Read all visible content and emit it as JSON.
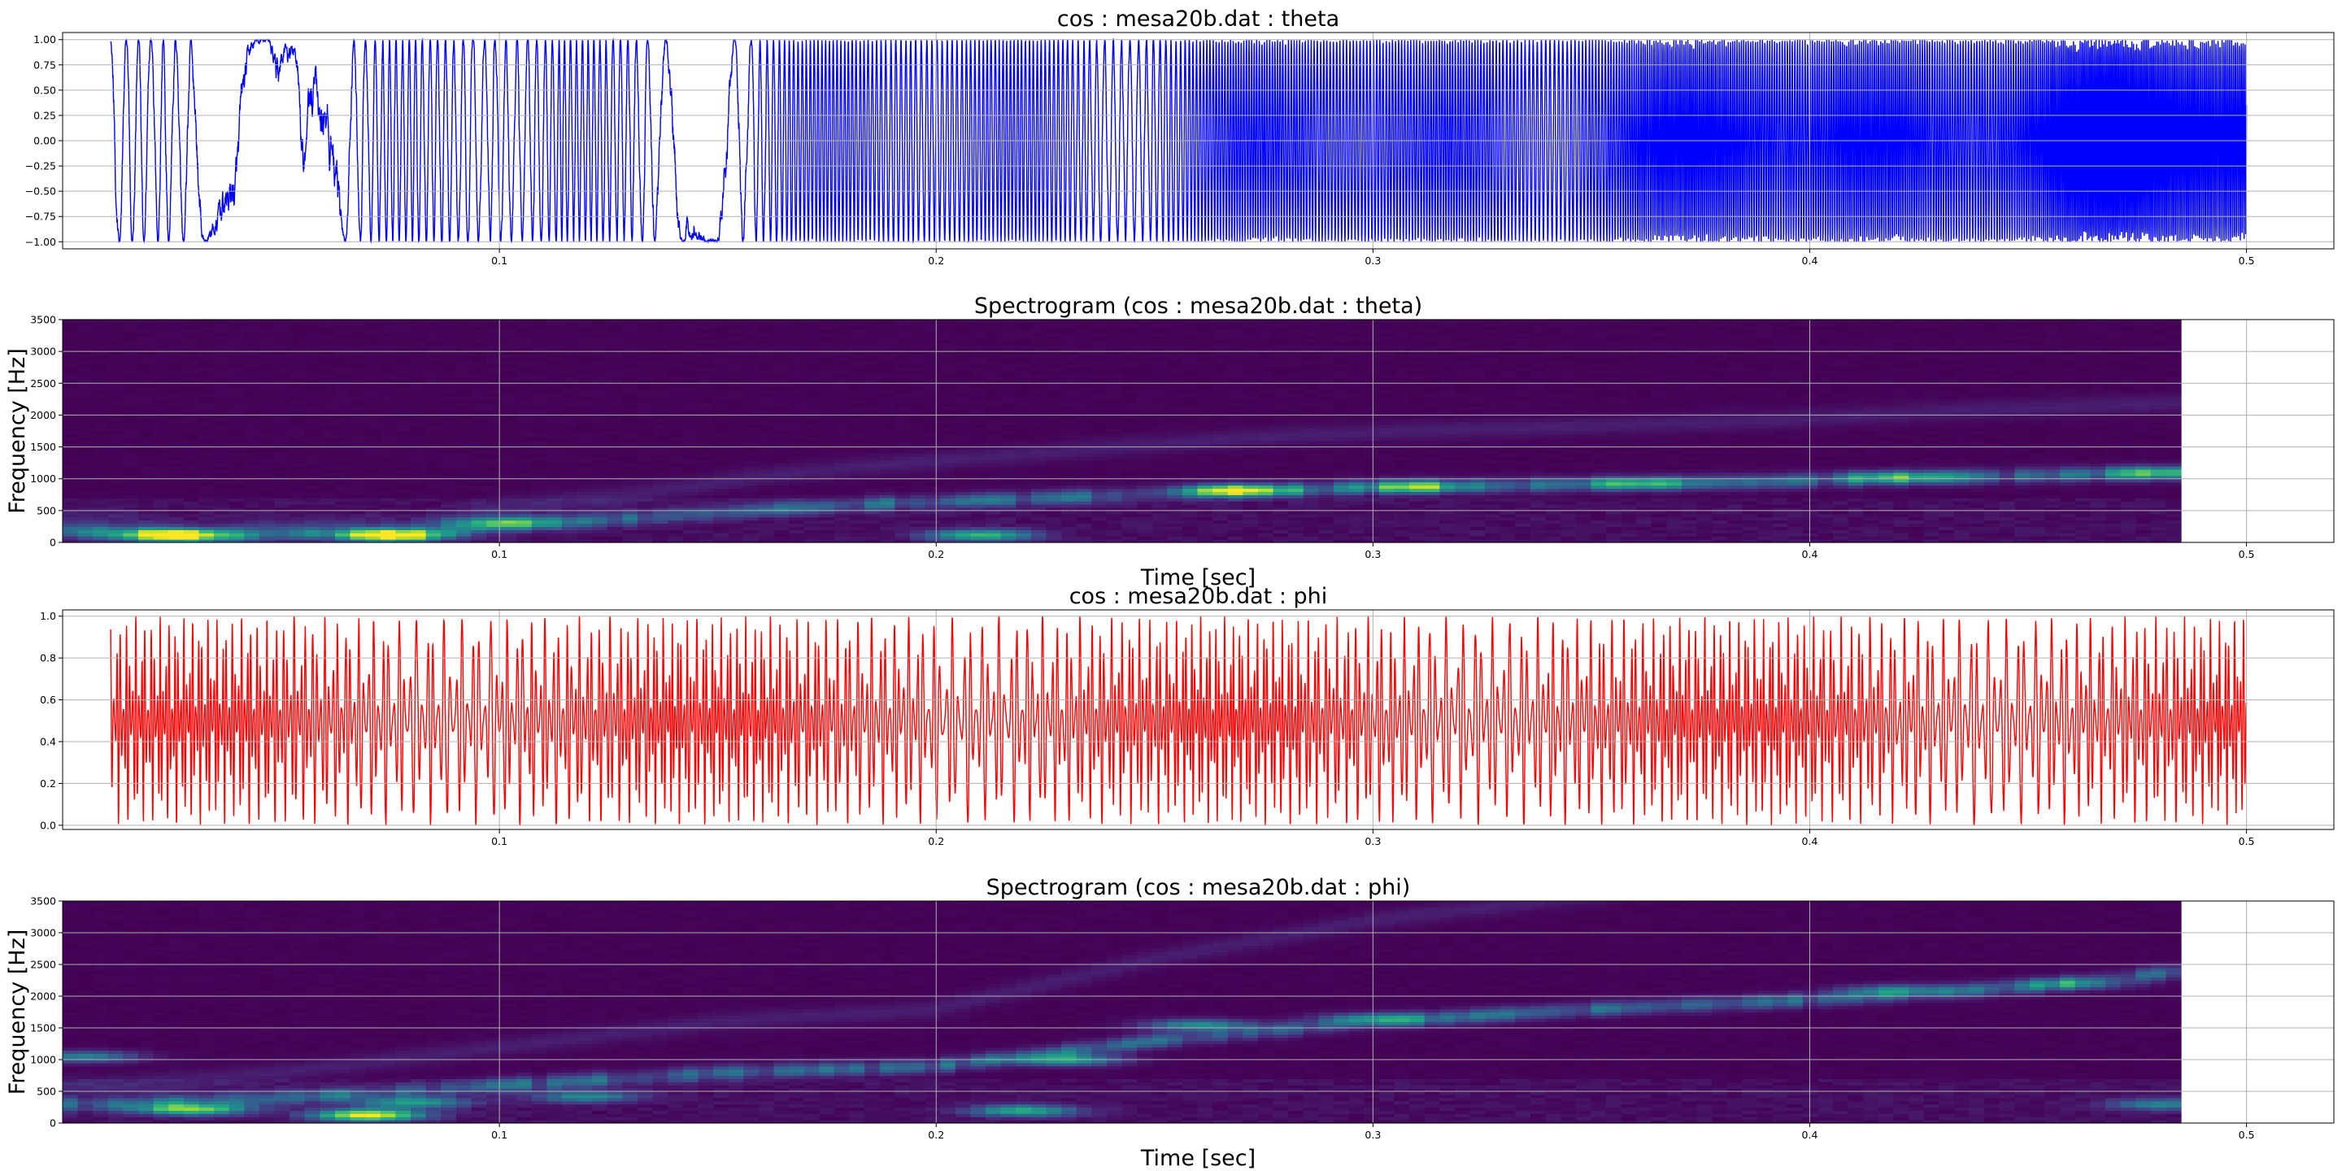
{
  "chart_data": [
    {
      "type": "line",
      "title": "cos : mesa20b.dat : theta",
      "xlabel": "",
      "ylabel": "",
      "xlim": [
        0.0,
        0.52
      ],
      "ylim": [
        -1.07,
        1.07
      ],
      "x_ticks": [
        0.1,
        0.2,
        0.3,
        0.4,
        0.5
      ],
      "x_tick_labels": [
        "0.1",
        "0.2",
        "0.3",
        "0.4",
        "0.5"
      ],
      "y_ticks": [
        -1.0,
        -0.75,
        -0.5,
        -0.25,
        0.0,
        0.25,
        0.5,
        0.75,
        1.0
      ],
      "y_tick_labels": [
        "−1.00",
        "−0.75",
        "−0.50",
        "−0.25",
        "0.00",
        "0.25",
        "0.50",
        "0.75",
        "1.00"
      ],
      "grid": true,
      "series": [
        {
          "color": "#0000ff",
          "x_range": [
            0.011,
            0.5
          ],
          "y_range": [
            -1.0,
            1.0
          ],
          "shape": "oscillation between -1 and 1 with frequency increasing over time (chirp)"
        }
      ]
    },
    {
      "type": "heatmap",
      "title": "Spectrogram (cos : mesa20b.dat : theta)",
      "xlabel": "Time [sec]",
      "ylabel": "Frequency [Hz]",
      "xlim": [
        0.0,
        0.52
      ],
      "ylim": [
        0,
        3500
      ],
      "data_x_extent": [
        0.0,
        0.485
      ],
      "x_ticks": [
        0.1,
        0.2,
        0.3,
        0.4,
        0.5
      ],
      "x_tick_labels": [
        "0.1",
        "0.2",
        "0.3",
        "0.4",
        "0.5"
      ],
      "y_ticks": [
        0,
        500,
        1000,
        1500,
        2000,
        2500,
        3000,
        3500
      ],
      "y_tick_labels": [
        "0",
        "500",
        "1000",
        "1500",
        "2000",
        "2500",
        "3000",
        "3500"
      ],
      "colormap": "viridis",
      "grid": true,
      "ridge": [
        {
          "t": 0.01,
          "f": 180
        },
        {
          "t": 0.03,
          "f": 100
        },
        {
          "t": 0.06,
          "f": 160
        },
        {
          "t": 0.08,
          "f": 120
        },
        {
          "t": 0.1,
          "f": 280
        },
        {
          "t": 0.13,
          "f": 380
        },
        {
          "t": 0.16,
          "f": 520
        },
        {
          "t": 0.19,
          "f": 620
        },
        {
          "t": 0.23,
          "f": 720
        },
        {
          "t": 0.27,
          "f": 820
        },
        {
          "t": 0.31,
          "f": 880
        },
        {
          "t": 0.35,
          "f": 920
        },
        {
          "t": 0.39,
          "f": 960
        },
        {
          "t": 0.43,
          "f": 1030
        },
        {
          "t": 0.485,
          "f": 1100
        }
      ],
      "hotspots": [
        {
          "t": 0.025,
          "f": 120,
          "intensity": 1.0
        },
        {
          "t": 0.075,
          "f": 120,
          "intensity": 0.9
        },
        {
          "t": 0.1,
          "f": 320,
          "intensity": 0.45
        },
        {
          "t": 0.21,
          "f": 120,
          "intensity": 0.65
        },
        {
          "t": 0.27,
          "f": 820,
          "intensity": 0.85
        },
        {
          "t": 0.31,
          "f": 880,
          "intensity": 0.55
        },
        {
          "t": 0.36,
          "f": 930,
          "intensity": 0.45
        },
        {
          "t": 0.42,
          "f": 1030,
          "intensity": 0.5
        },
        {
          "t": 0.48,
          "f": 1100,
          "intensity": 0.45
        }
      ]
    },
    {
      "type": "line",
      "title": "cos : mesa20b.dat : phi",
      "xlabel": "",
      "ylabel": "",
      "xlim": [
        0.0,
        0.52
      ],
      "ylim": [
        -0.02,
        1.03
      ],
      "x_ticks": [
        0.1,
        0.2,
        0.3,
        0.4,
        0.5
      ],
      "x_tick_labels": [
        "0.1",
        "0.2",
        "0.3",
        "0.4",
        "0.5"
      ],
      "y_ticks": [
        0.0,
        0.2,
        0.4,
        0.6,
        0.8,
        1.0
      ],
      "y_tick_labels": [
        "0.0",
        "0.2",
        "0.4",
        "0.6",
        "0.8",
        "1.0"
      ],
      "grid": true,
      "series": [
        {
          "color": "#ff0000",
          "x_range": [
            0.011,
            0.5
          ],
          "y_range": [
            0.0,
            1.0
          ],
          "shape": "dense rapid oscillation between 0 and 1"
        }
      ]
    },
    {
      "type": "heatmap",
      "title": "Spectrogram (cos : mesa20b.dat : phi)",
      "xlabel": "Time [sec]",
      "ylabel": "Frequency [Hz]",
      "xlim": [
        0.0,
        0.52
      ],
      "ylim": [
        0,
        3500
      ],
      "data_x_extent": [
        0.0,
        0.485
      ],
      "x_ticks": [
        0.1,
        0.2,
        0.3,
        0.4,
        0.5
      ],
      "x_tick_labels": [
        "0.1",
        "0.2",
        "0.3",
        "0.4",
        "0.5"
      ],
      "y_ticks": [
        0,
        500,
        1000,
        1500,
        2000,
        2500,
        3000,
        3500
      ],
      "y_tick_labels": [
        "0",
        "500",
        "1000",
        "1500",
        "2000",
        "2500",
        "3000",
        "3500"
      ],
      "colormap": "viridis",
      "grid": true,
      "ridge": [
        {
          "t": 0.01,
          "f": 300
        },
        {
          "t": 0.05,
          "f": 400
        },
        {
          "t": 0.1,
          "f": 600
        },
        {
          "t": 0.15,
          "f": 800
        },
        {
          "t": 0.2,
          "f": 900
        },
        {
          "t": 0.25,
          "f": 1300
        },
        {
          "t": 0.3,
          "f": 1600
        },
        {
          "t": 0.35,
          "f": 1800
        },
        {
          "t": 0.4,
          "f": 1950
        },
        {
          "t": 0.45,
          "f": 2150
        },
        {
          "t": 0.485,
          "f": 2400
        }
      ],
      "hotspots": [
        {
          "t": 0.03,
          "f": 220,
          "intensity": 0.75
        },
        {
          "t": 0.07,
          "f": 130,
          "intensity": 1.0
        },
        {
          "t": 0.08,
          "f": 330,
          "intensity": 0.55
        },
        {
          "t": 0.22,
          "f": 200,
          "intensity": 0.6
        },
        {
          "t": 0.23,
          "f": 1000,
          "intensity": 0.55
        },
        {
          "t": 0.26,
          "f": 1550,
          "intensity": 0.5
        },
        {
          "t": 0.3,
          "f": 1650,
          "intensity": 0.4
        },
        {
          "t": 0.12,
          "f": 420,
          "intensity": 0.45
        },
        {
          "t": 0.005,
          "f": 1050,
          "intensity": 0.45
        },
        {
          "t": 0.42,
          "f": 2100,
          "intensity": 0.35
        },
        {
          "t": 0.46,
          "f": 2200,
          "intensity": 0.35
        },
        {
          "t": 0.48,
          "f": 300,
          "intensity": 0.4
        }
      ]
    }
  ]
}
